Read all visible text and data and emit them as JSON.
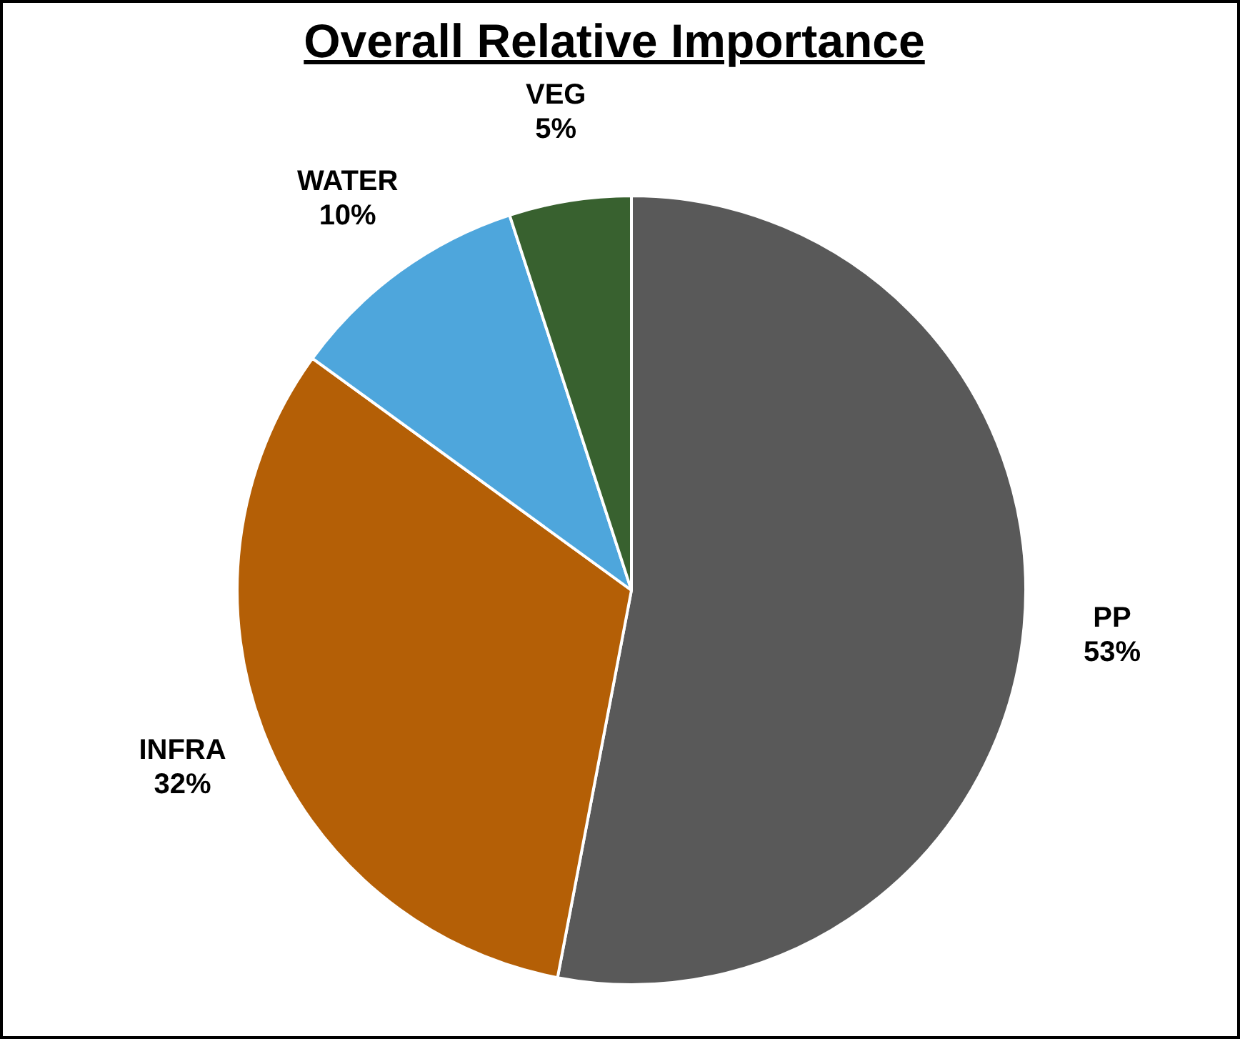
{
  "chart_data": {
    "type": "pie",
    "title": "Overall Relative Importance",
    "categories": [
      "PP",
      "INFRA",
      "WATER",
      "VEG"
    ],
    "values": [
      53,
      32,
      10,
      5
    ],
    "value_labels": [
      "53%",
      "32%",
      "10%",
      "5%"
    ],
    "colors": [
      "#595959",
      "#b45f06",
      "#4ea6dc",
      "#38612f"
    ],
    "legend": false
  }
}
